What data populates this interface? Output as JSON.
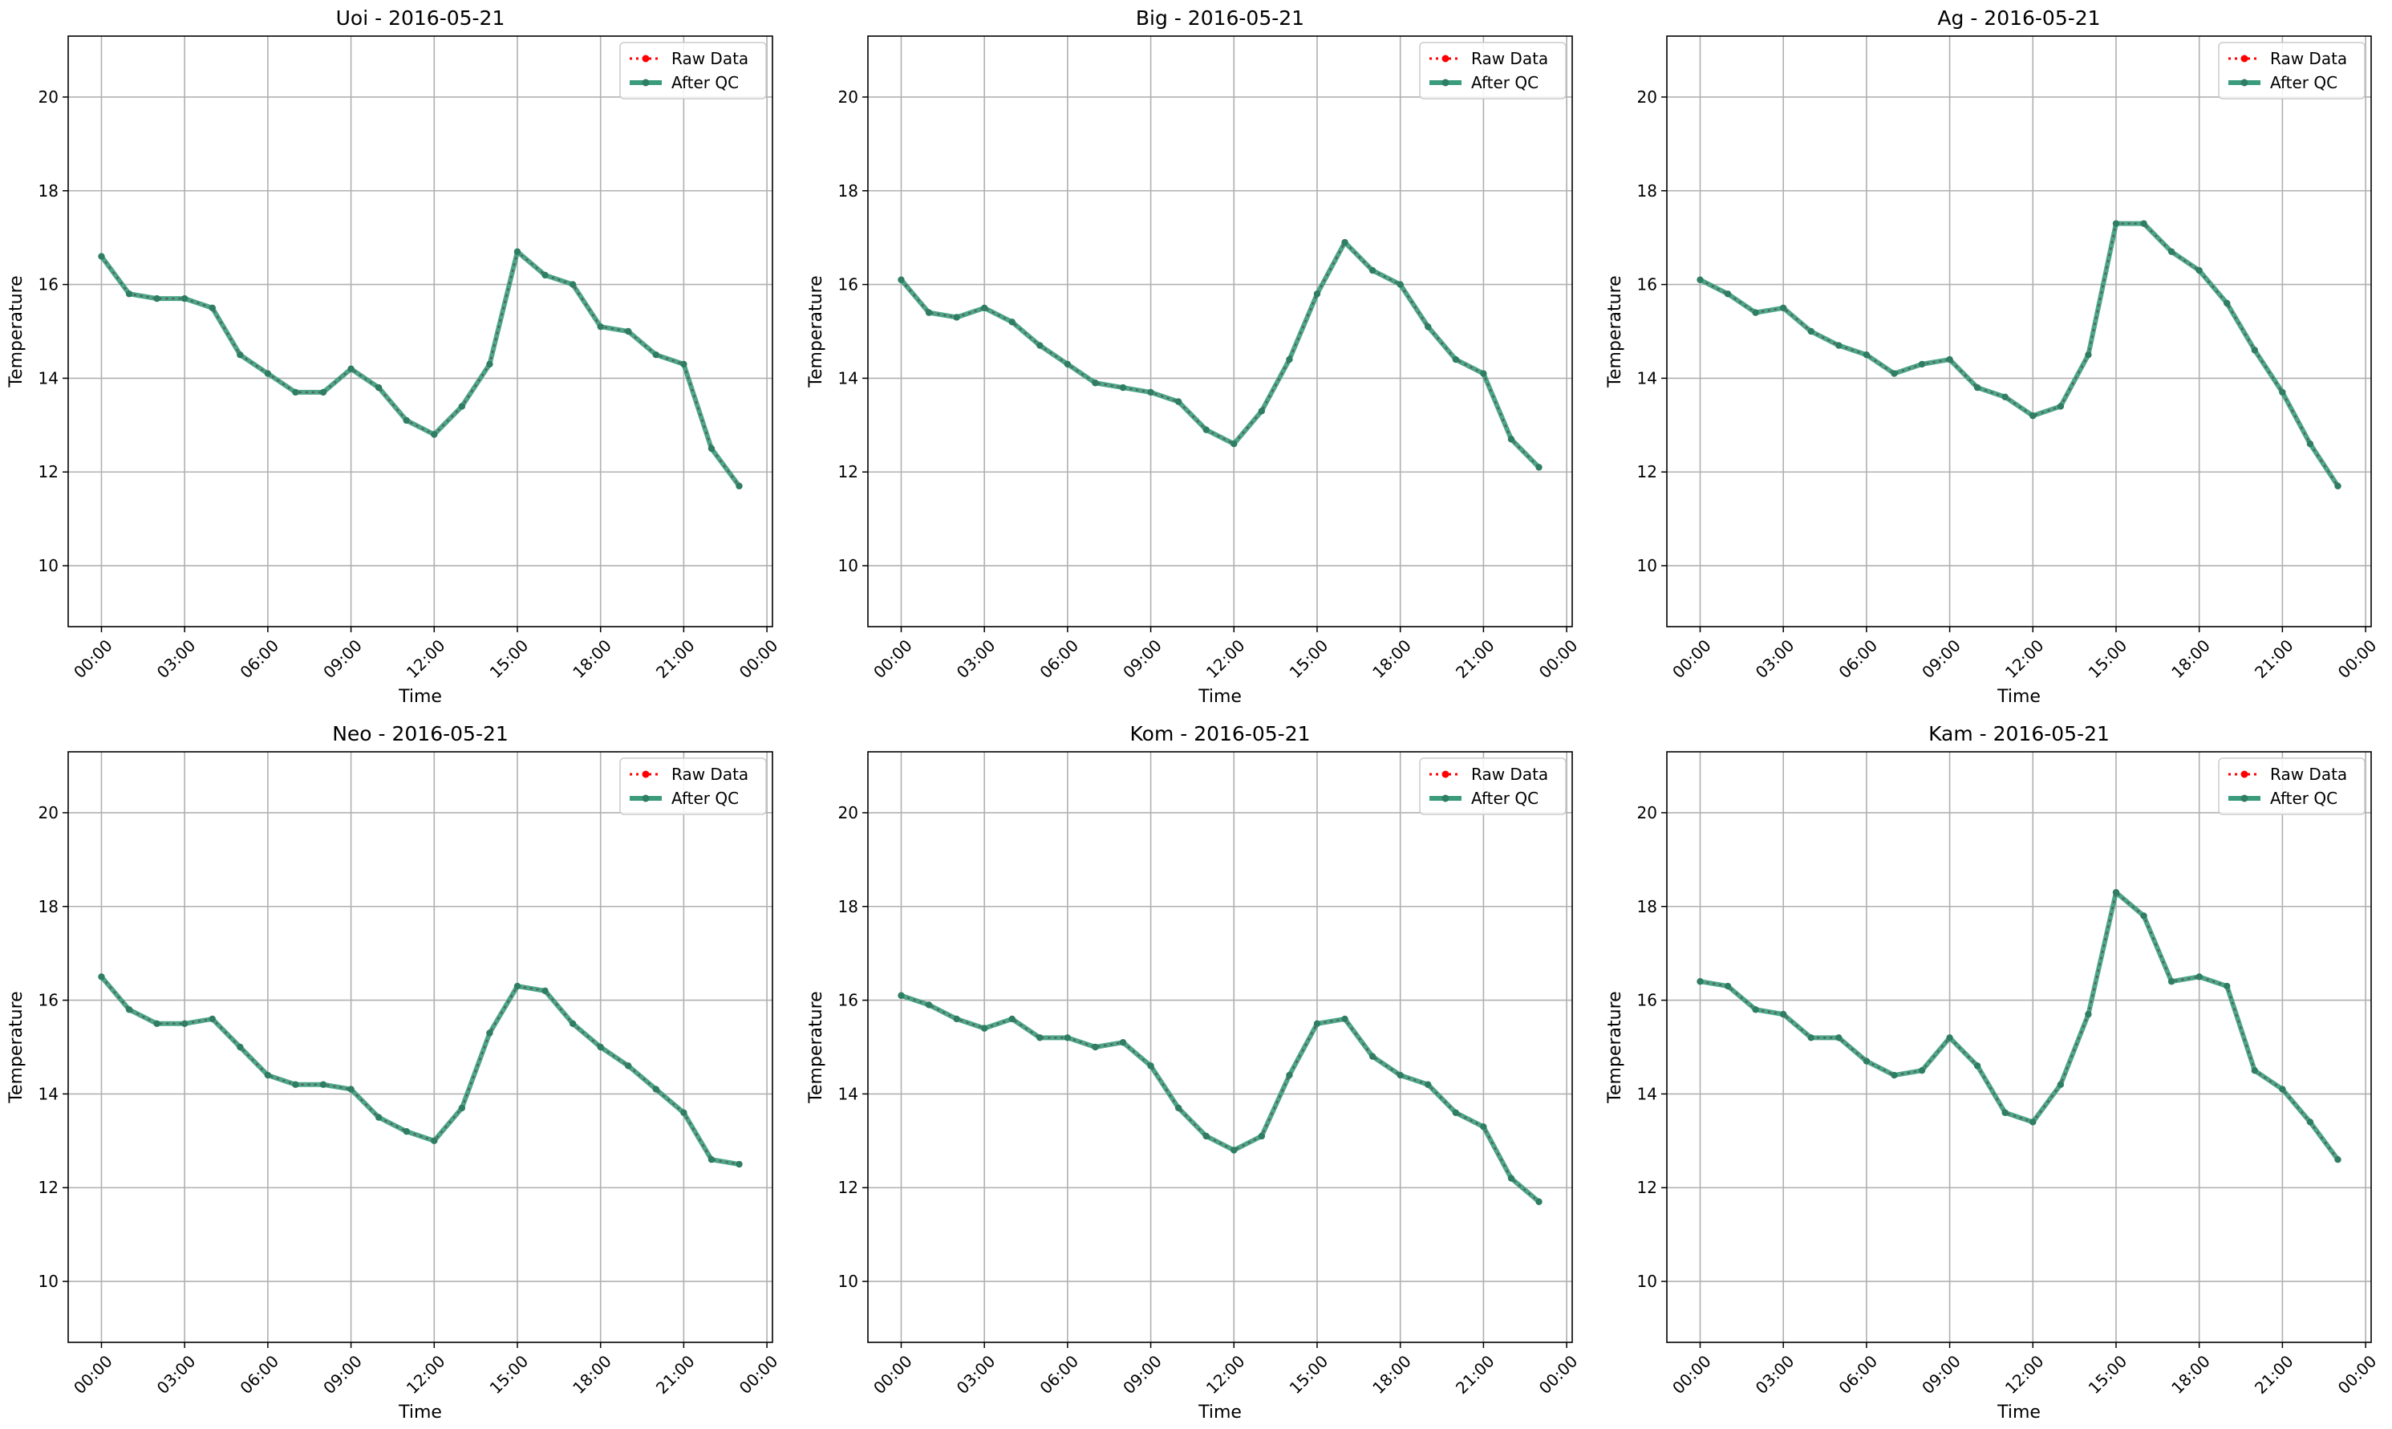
{
  "legend_labels": {
    "raw": "Raw Data",
    "qc": "After QC"
  },
  "colors": {
    "raw": "#ff0000",
    "qc": "#3a9b7d",
    "marker": "#2f7d63",
    "grid": "#b0b0b0"
  },
  "chart_data": [
    {
      "type": "line",
      "title": "Uoi - 2016-05-21",
      "xlabel": "Time",
      "ylabel": "Temperature",
      "x_ticks": [
        "00:00",
        "03:00",
        "06:00",
        "09:00",
        "12:00",
        "15:00",
        "18:00",
        "21:00",
        "00:00"
      ],
      "y_ticks": [
        "10",
        "12",
        "14",
        "16",
        "18",
        "20"
      ],
      "xlim": [
        -1.2,
        24.2
      ],
      "ylim": [
        8.7,
        21.3
      ],
      "grid": true,
      "legend": "top-right",
      "x": [
        "00:00",
        "01:00",
        "02:00",
        "03:00",
        "04:00",
        "05:00",
        "06:00",
        "07:00",
        "08:00",
        "09:00",
        "10:00",
        "11:00",
        "12:00",
        "13:00",
        "14:00",
        "15:00",
        "16:00",
        "17:00",
        "18:00",
        "19:00",
        "20:00",
        "21:00",
        "22:00",
        "23:00"
      ],
      "series": [
        {
          "name": "Raw Data",
          "values": [
            16.6,
            15.8,
            15.7,
            15.7,
            15.5,
            14.5,
            14.1,
            13.7,
            13.7,
            14.2,
            13.8,
            13.1,
            12.8,
            13.4,
            14.3,
            16.7,
            16.2,
            16.0,
            15.1,
            15.0,
            14.5,
            14.3,
            12.5,
            11.7
          ]
        },
        {
          "name": "After QC",
          "values": [
            16.6,
            15.8,
            15.7,
            15.7,
            15.5,
            14.5,
            14.1,
            13.7,
            13.7,
            14.2,
            13.8,
            13.1,
            12.8,
            13.4,
            14.3,
            16.7,
            16.2,
            16.0,
            15.1,
            15.0,
            14.5,
            14.3,
            12.5,
            11.7
          ]
        }
      ]
    },
    {
      "type": "line",
      "title": "Big - 2016-05-21",
      "xlabel": "Time",
      "ylabel": "Temperature",
      "x_ticks": [
        "00:00",
        "03:00",
        "06:00",
        "09:00",
        "12:00",
        "15:00",
        "18:00",
        "21:00",
        "00:00"
      ],
      "y_ticks": [
        "10",
        "12",
        "14",
        "16",
        "18",
        "20"
      ],
      "xlim": [
        -1.2,
        24.2
      ],
      "ylim": [
        8.7,
        21.3
      ],
      "grid": true,
      "legend": "top-right",
      "x": [
        "00:00",
        "01:00",
        "02:00",
        "03:00",
        "04:00",
        "05:00",
        "06:00",
        "07:00",
        "08:00",
        "09:00",
        "10:00",
        "11:00",
        "12:00",
        "13:00",
        "14:00",
        "15:00",
        "16:00",
        "17:00",
        "18:00",
        "19:00",
        "20:00",
        "21:00",
        "22:00",
        "23:00"
      ],
      "series": [
        {
          "name": "Raw Data",
          "values": [
            16.1,
            15.4,
            15.3,
            15.5,
            15.2,
            14.7,
            14.3,
            13.9,
            13.8,
            13.7,
            13.5,
            12.9,
            12.6,
            13.3,
            14.4,
            15.8,
            16.9,
            16.3,
            16.0,
            15.1,
            14.4,
            14.1,
            12.7,
            12.1
          ]
        },
        {
          "name": "After QC",
          "values": [
            16.1,
            15.4,
            15.3,
            15.5,
            15.2,
            14.7,
            14.3,
            13.9,
            13.8,
            13.7,
            13.5,
            12.9,
            12.6,
            13.3,
            14.4,
            15.8,
            16.9,
            16.3,
            16.0,
            15.1,
            14.4,
            14.1,
            12.7,
            12.1
          ]
        }
      ]
    },
    {
      "type": "line",
      "title": "Ag - 2016-05-21",
      "xlabel": "Time",
      "ylabel": "Temperature",
      "x_ticks": [
        "00:00",
        "03:00",
        "06:00",
        "09:00",
        "12:00",
        "15:00",
        "18:00",
        "21:00",
        "00:00"
      ],
      "y_ticks": [
        "10",
        "12",
        "14",
        "16",
        "18",
        "20"
      ],
      "xlim": [
        -1.2,
        24.2
      ],
      "ylim": [
        8.7,
        21.3
      ],
      "grid": true,
      "legend": "top-right",
      "x": [
        "00:00",
        "01:00",
        "02:00",
        "03:00",
        "04:00",
        "05:00",
        "06:00",
        "07:00",
        "08:00",
        "09:00",
        "10:00",
        "11:00",
        "12:00",
        "13:00",
        "14:00",
        "15:00",
        "16:00",
        "17:00",
        "18:00",
        "19:00",
        "20:00",
        "21:00",
        "22:00",
        "23:00"
      ],
      "series": [
        {
          "name": "Raw Data",
          "values": [
            16.1,
            15.8,
            15.4,
            15.5,
            15.0,
            14.7,
            14.5,
            14.1,
            14.3,
            14.4,
            13.8,
            13.6,
            13.2,
            13.4,
            14.5,
            17.3,
            17.3,
            16.7,
            16.3,
            15.6,
            14.6,
            13.7,
            12.6,
            11.7
          ]
        },
        {
          "name": "After QC",
          "values": [
            16.1,
            15.8,
            15.4,
            15.5,
            15.0,
            14.7,
            14.5,
            14.1,
            14.3,
            14.4,
            13.8,
            13.6,
            13.2,
            13.4,
            14.5,
            17.3,
            17.3,
            16.7,
            16.3,
            15.6,
            14.6,
            13.7,
            12.6,
            11.7
          ]
        }
      ]
    },
    {
      "type": "line",
      "title": "Neo - 2016-05-21",
      "xlabel": "Time",
      "ylabel": "Temperature",
      "x_ticks": [
        "00:00",
        "03:00",
        "06:00",
        "09:00",
        "12:00",
        "15:00",
        "18:00",
        "21:00",
        "00:00"
      ],
      "y_ticks": [
        "10",
        "12",
        "14",
        "16",
        "18",
        "20"
      ],
      "xlim": [
        -1.2,
        24.2
      ],
      "ylim": [
        8.7,
        21.3
      ],
      "grid": true,
      "legend": "top-right",
      "x": [
        "00:00",
        "01:00",
        "02:00",
        "03:00",
        "04:00",
        "05:00",
        "06:00",
        "07:00",
        "08:00",
        "09:00",
        "10:00",
        "11:00",
        "12:00",
        "13:00",
        "14:00",
        "15:00",
        "16:00",
        "17:00",
        "18:00",
        "19:00",
        "20:00",
        "21:00",
        "22:00",
        "23:00"
      ],
      "series": [
        {
          "name": "Raw Data",
          "values": [
            16.5,
            15.8,
            15.5,
            15.5,
            15.6,
            15.0,
            14.4,
            14.2,
            14.2,
            14.1,
            13.5,
            13.2,
            13.0,
            13.7,
            15.3,
            16.3,
            16.2,
            15.5,
            15.0,
            14.6,
            14.1,
            13.6,
            12.6,
            12.5
          ]
        },
        {
          "name": "After QC",
          "values": [
            16.5,
            15.8,
            15.5,
            15.5,
            15.6,
            15.0,
            14.4,
            14.2,
            14.2,
            14.1,
            13.5,
            13.2,
            13.0,
            13.7,
            15.3,
            16.3,
            16.2,
            15.5,
            15.0,
            14.6,
            14.1,
            13.6,
            12.6,
            12.5
          ]
        }
      ]
    },
    {
      "type": "line",
      "title": "Kom - 2016-05-21",
      "xlabel": "Time",
      "ylabel": "Temperature",
      "x_ticks": [
        "00:00",
        "03:00",
        "06:00",
        "09:00",
        "12:00",
        "15:00",
        "18:00",
        "21:00",
        "00:00"
      ],
      "y_ticks": [
        "10",
        "12",
        "14",
        "16",
        "18",
        "20"
      ],
      "xlim": [
        -1.2,
        24.2
      ],
      "ylim": [
        8.7,
        21.3
      ],
      "grid": true,
      "legend": "top-right",
      "x": [
        "00:00",
        "01:00",
        "02:00",
        "03:00",
        "04:00",
        "05:00",
        "06:00",
        "07:00",
        "08:00",
        "09:00",
        "10:00",
        "11:00",
        "12:00",
        "13:00",
        "14:00",
        "15:00",
        "16:00",
        "17:00",
        "18:00",
        "19:00",
        "20:00",
        "21:00",
        "22:00",
        "23:00"
      ],
      "series": [
        {
          "name": "Raw Data",
          "values": [
            16.1,
            15.9,
            15.6,
            15.4,
            15.6,
            15.2,
            15.2,
            15.0,
            15.1,
            14.6,
            13.7,
            13.1,
            12.8,
            13.1,
            14.4,
            15.5,
            15.6,
            14.8,
            14.4,
            14.2,
            13.6,
            13.3,
            12.2,
            11.7
          ]
        },
        {
          "name": "After QC",
          "values": [
            16.1,
            15.9,
            15.6,
            15.4,
            15.6,
            15.2,
            15.2,
            15.0,
            15.1,
            14.6,
            13.7,
            13.1,
            12.8,
            13.1,
            14.4,
            15.5,
            15.6,
            14.8,
            14.4,
            14.2,
            13.6,
            13.3,
            12.2,
            11.7
          ]
        }
      ]
    },
    {
      "type": "line",
      "title": "Kam - 2016-05-21",
      "xlabel": "Time",
      "ylabel": "Temperature",
      "x_ticks": [
        "00:00",
        "03:00",
        "06:00",
        "09:00",
        "12:00",
        "15:00",
        "18:00",
        "21:00",
        "00:00"
      ],
      "y_ticks": [
        "10",
        "12",
        "14",
        "16",
        "18",
        "20"
      ],
      "xlim": [
        -1.2,
        24.2
      ],
      "ylim": [
        8.7,
        21.3
      ],
      "grid": true,
      "legend": "top-right",
      "x": [
        "00:00",
        "01:00",
        "02:00",
        "03:00",
        "04:00",
        "05:00",
        "06:00",
        "07:00",
        "08:00",
        "09:00",
        "10:00",
        "11:00",
        "12:00",
        "13:00",
        "14:00",
        "15:00",
        "16:00",
        "17:00",
        "18:00",
        "19:00",
        "20:00",
        "21:00",
        "22:00",
        "23:00"
      ],
      "series": [
        {
          "name": "Raw Data",
          "values": [
            16.4,
            16.3,
            15.8,
            15.7,
            15.2,
            15.2,
            14.7,
            14.4,
            14.5,
            15.2,
            14.6,
            13.6,
            13.4,
            14.2,
            15.7,
            18.3,
            17.8,
            16.4,
            16.5,
            16.3,
            14.5,
            14.1,
            13.4,
            12.6
          ]
        },
        {
          "name": "After QC",
          "values": [
            16.4,
            16.3,
            15.8,
            15.7,
            15.2,
            15.2,
            14.7,
            14.4,
            14.5,
            15.2,
            14.6,
            13.6,
            13.4,
            14.2,
            15.7,
            18.3,
            17.8,
            16.4,
            16.5,
            16.3,
            14.5,
            14.1,
            13.4,
            12.6
          ]
        }
      ]
    }
  ]
}
